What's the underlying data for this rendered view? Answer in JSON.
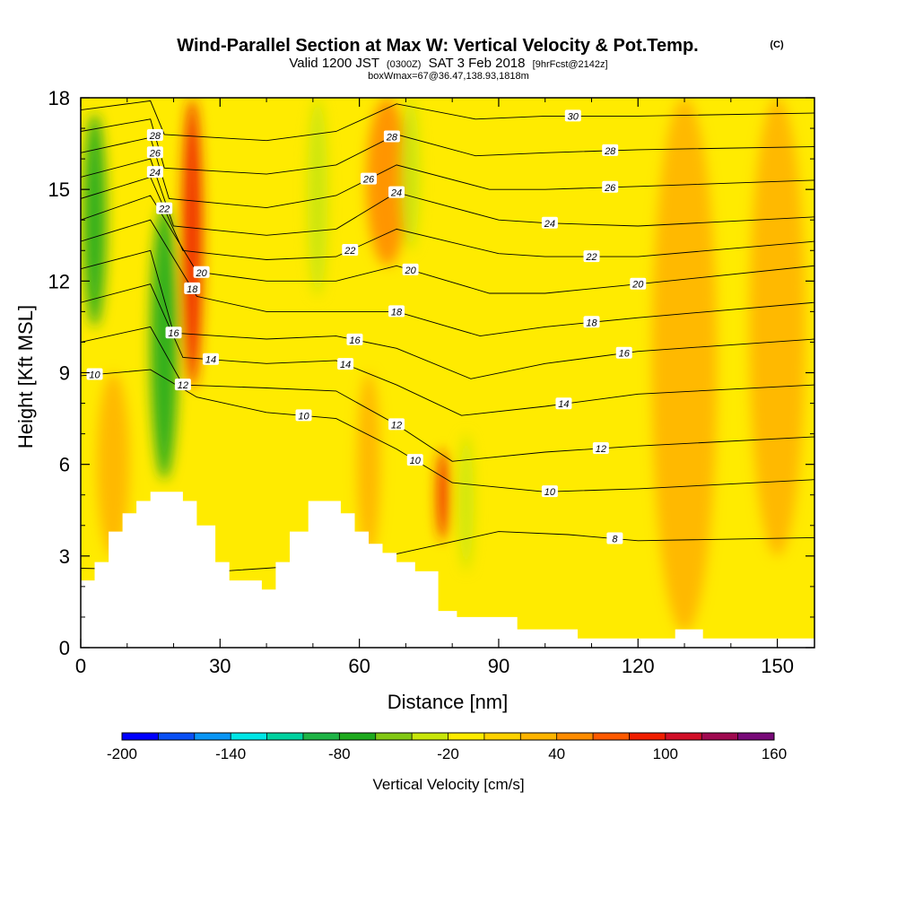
{
  "chart_data": {
    "type": "heatmap",
    "title": "Wind-Parallel Section at Max W: Vertical Velocity & Pot.Temp.",
    "title_mark": "(C)",
    "subtitle": {
      "prefix": "Valid 1200 JST",
      "utc": "(0300Z)",
      "date": "SAT 3 Feb 2018",
      "fcst": "[9hrFcst@2142z]"
    },
    "subtitle_line3": "boxWmax=67@36.47,138.93,1818m",
    "xlabel": "Distance [nm]",
    "ylabel": "Height [Kft MSL]",
    "xlim": [
      0,
      158
    ],
    "ylim": [
      0,
      18
    ],
    "x_ticks": [
      0,
      30,
      60,
      90,
      120,
      150
    ],
    "y_ticks": [
      0,
      3,
      6,
      9,
      12,
      15,
      18
    ],
    "colorbar": {
      "title": "Vertical Velocity [cm/s]",
      "min": -200,
      "max": 160,
      "step": 20,
      "tick_labels": [
        "-200",
        "-140",
        "-80",
        "-20",
        "40",
        "100",
        "160"
      ],
      "colors": [
        "#0000ff",
        "#0a50f5",
        "#0a96f5",
        "#00e6e6",
        "#00d2a0",
        "#1eb446",
        "#1eaa1e",
        "#82c814",
        "#c8e60a",
        "#ffeb00",
        "#ffd200",
        "#ffb400",
        "#ff8c00",
        "#ff5a00",
        "#f01e00",
        "#d20f28",
        "#a00a50",
        "#780a78"
      ]
    },
    "velocity_bands": [
      {
        "x": 3,
        "top": 17.5,
        "bottom": 10.5,
        "w": 2.5,
        "value": -70
      },
      {
        "x": 18,
        "top": 14.5,
        "bottom": 5.5,
        "w": 3.0,
        "value": -70
      },
      {
        "x": 24,
        "top": 18,
        "bottom": 8.5,
        "w": 2.2,
        "value": 80
      },
      {
        "x": 51,
        "top": 18,
        "bottom": 11.5,
        "w": 2.2,
        "value": -30
      },
      {
        "x": 66,
        "top": 18,
        "bottom": 12.5,
        "w": 4.5,
        "value": 50
      },
      {
        "x": 71,
        "top": 18,
        "bottom": 13.0,
        "w": 2.0,
        "value": -40
      },
      {
        "x": 78,
        "top": 6.5,
        "bottom": 3.5,
        "w": 1.3,
        "value": 90
      },
      {
        "x": 83,
        "top": 7.0,
        "bottom": 2.5,
        "w": 1.6,
        "value": -40
      },
      {
        "x": 130,
        "top": 18,
        "bottom": 0.5,
        "w": 7.0,
        "value": 30
      },
      {
        "x": 62,
        "top": 9.0,
        "bottom": 3.0,
        "w": 2.5,
        "value": 30
      },
      {
        "x": 7,
        "top": 9.0,
        "bottom": 3.0,
        "w": 3.5,
        "value": 30
      },
      {
        "x": 150,
        "top": 18,
        "bottom": 3.0,
        "w": 6.0,
        "value": 25
      }
    ],
    "terrain": {
      "x": [
        0,
        3,
        3,
        6,
        6,
        9,
        9,
        12,
        12,
        15,
        15,
        22,
        22,
        25,
        25,
        29,
        29,
        32,
        32,
        39,
        39,
        42,
        42,
        45,
        45,
        49,
        49,
        56,
        56,
        59,
        59,
        62,
        62,
        65,
        65,
        68,
        68,
        72,
        72,
        77,
        77,
        81,
        81,
        94,
        94,
        107,
        107,
        111,
        111,
        128,
        128,
        134,
        134,
        158
      ],
      "y": [
        2.2,
        2.2,
        2.8,
        2.8,
        3.8,
        3.8,
        4.4,
        4.4,
        4.8,
        4.8,
        5.1,
        5.1,
        4.8,
        4.8,
        4.0,
        4.0,
        2.8,
        2.8,
        2.2,
        2.2,
        1.9,
        1.9,
        2.8,
        2.8,
        3.8,
        3.8,
        4.8,
        4.8,
        4.4,
        4.4,
        3.8,
        3.8,
        3.4,
        3.4,
        3.1,
        3.1,
        2.8,
        2.8,
        2.5,
        2.5,
        1.2,
        1.2,
        1.0,
        1.0,
        0.6,
        0.6,
        0.3,
        0.3,
        0.3,
        0.3,
        0.6,
        0.6,
        0.3,
        0.3
      ]
    },
    "isentropes": [
      {
        "level": 8,
        "x": [
          0,
          30,
          60,
          90,
          105,
          120,
          158
        ],
        "y": [
          2.6,
          2.5,
          2.8,
          3.8,
          3.7,
          3.5,
          3.6
        ],
        "label_x": 115
      },
      {
        "level": 10,
        "x": [
          0,
          15,
          25,
          40,
          55,
          68,
          80,
          100,
          120,
          158
        ],
        "y": [
          8.9,
          9.1,
          8.2,
          7.7,
          7.5,
          6.5,
          5.4,
          5.1,
          5.2,
          5.5
        ],
        "labels": [
          {
            "x": 3,
            "text": "10"
          },
          {
            "x": 48,
            "text": "10"
          },
          {
            "x": 72,
            "text": "10"
          },
          {
            "x": 101,
            "text": "10"
          }
        ]
      },
      {
        "level": 12,
        "x": [
          0,
          15,
          22,
          40,
          55,
          68,
          80,
          100,
          120,
          158
        ],
        "y": [
          10.0,
          10.5,
          8.6,
          8.5,
          8.4,
          7.3,
          6.1,
          6.4,
          6.6,
          6.9
        ],
        "labels": [
          {
            "x": 22,
            "text": "12"
          },
          {
            "x": 68,
            "text": "12"
          },
          {
            "x": 112,
            "text": "12"
          }
        ]
      },
      {
        "level": 14,
        "x": [
          0,
          15,
          22,
          40,
          55,
          68,
          82,
          100,
          120,
          158
        ],
        "y": [
          11.3,
          11.9,
          9.5,
          9.3,
          9.4,
          8.6,
          7.6,
          7.9,
          8.3,
          8.6
        ],
        "labels": [
          {
            "x": 28,
            "text": "14"
          },
          {
            "x": 57,
            "text": "14"
          },
          {
            "x": 104,
            "text": "14"
          }
        ]
      },
      {
        "level": 16,
        "x": [
          0,
          15,
          20,
          40,
          55,
          68,
          84,
          100,
          120,
          158
        ],
        "y": [
          12.4,
          13.0,
          10.3,
          10.1,
          10.2,
          9.8,
          8.8,
          9.3,
          9.7,
          10.1
        ],
        "labels": [
          {
            "x": 20,
            "text": "16"
          },
          {
            "x": 59,
            "text": "16"
          },
          {
            "x": 117,
            "text": "16"
          }
        ]
      },
      {
        "level": 18,
        "x": [
          0,
          15,
          25,
          40,
          55,
          68,
          86,
          100,
          120,
          158
        ],
        "y": [
          13.3,
          14.0,
          11.5,
          11.0,
          11.0,
          11.0,
          10.2,
          10.5,
          10.8,
          11.3
        ],
        "labels": [
          {
            "x": 24,
            "text": "18"
          },
          {
            "x": 68,
            "text": "18"
          },
          {
            "x": 110,
            "text": "18"
          }
        ]
      },
      {
        "level": 20,
        "x": [
          0,
          15,
          25,
          40,
          55,
          68,
          88,
          100,
          120,
          158
        ],
        "y": [
          14.0,
          14.8,
          12.3,
          12.0,
          12.0,
          12.5,
          11.6,
          11.6,
          11.9,
          12.5
        ],
        "labels": [
          {
            "x": 26,
            "text": "20"
          },
          {
            "x": 71,
            "text": "20"
          },
          {
            "x": 120,
            "text": "20"
          }
        ]
      },
      {
        "level": 22,
        "x": [
          0,
          15,
          22,
          40,
          55,
          68,
          90,
          100,
          120,
          158
        ],
        "y": [
          14.7,
          15.4,
          13.0,
          12.7,
          12.8,
          13.7,
          12.9,
          12.8,
          12.8,
          13.3
        ],
        "labels": [
          {
            "x": 18,
            "text": "22"
          },
          {
            "x": 58,
            "text": "22"
          },
          {
            "x": 110,
            "text": "22"
          }
        ]
      },
      {
        "level": 24,
        "x": [
          0,
          15,
          20,
          40,
          55,
          68,
          90,
          100,
          120,
          158
        ],
        "y": [
          15.4,
          16.0,
          13.8,
          13.5,
          13.7,
          14.9,
          14.0,
          13.9,
          13.8,
          14.1
        ],
        "labels": [
          {
            "x": 16,
            "text": "24"
          },
          {
            "x": 68,
            "text": "24"
          },
          {
            "x": 101,
            "text": "24"
          }
        ]
      },
      {
        "level": 26,
        "x": [
          0,
          15,
          19,
          40,
          55,
          68,
          88,
          100,
          120,
          158
        ],
        "y": [
          16.2,
          16.7,
          14.7,
          14.4,
          14.8,
          15.8,
          15.0,
          15.0,
          15.1,
          15.3
        ],
        "labels": [
          {
            "x": 16,
            "text": "26"
          },
          {
            "x": 62,
            "text": "26"
          },
          {
            "x": 114,
            "text": "26"
          }
        ]
      },
      {
        "level": 28,
        "x": [
          0,
          15,
          18,
          40,
          55,
          68,
          85,
          100,
          120,
          158
        ],
        "y": [
          16.9,
          17.3,
          15.7,
          15.5,
          15.8,
          16.8,
          16.1,
          16.2,
          16.3,
          16.4
        ],
        "labels": [
          {
            "x": 16,
            "text": "28"
          },
          {
            "x": 67,
            "text": "28"
          },
          {
            "x": 114,
            "text": "28"
          }
        ]
      },
      {
        "level": 30,
        "x": [
          0,
          15,
          18,
          40,
          55,
          68,
          85,
          100,
          120,
          158
        ],
        "y": [
          17.6,
          17.9,
          16.8,
          16.6,
          16.9,
          17.8,
          17.3,
          17.4,
          17.4,
          17.5
        ],
        "labels": [
          {
            "x": 106,
            "text": "30"
          }
        ]
      }
    ]
  }
}
